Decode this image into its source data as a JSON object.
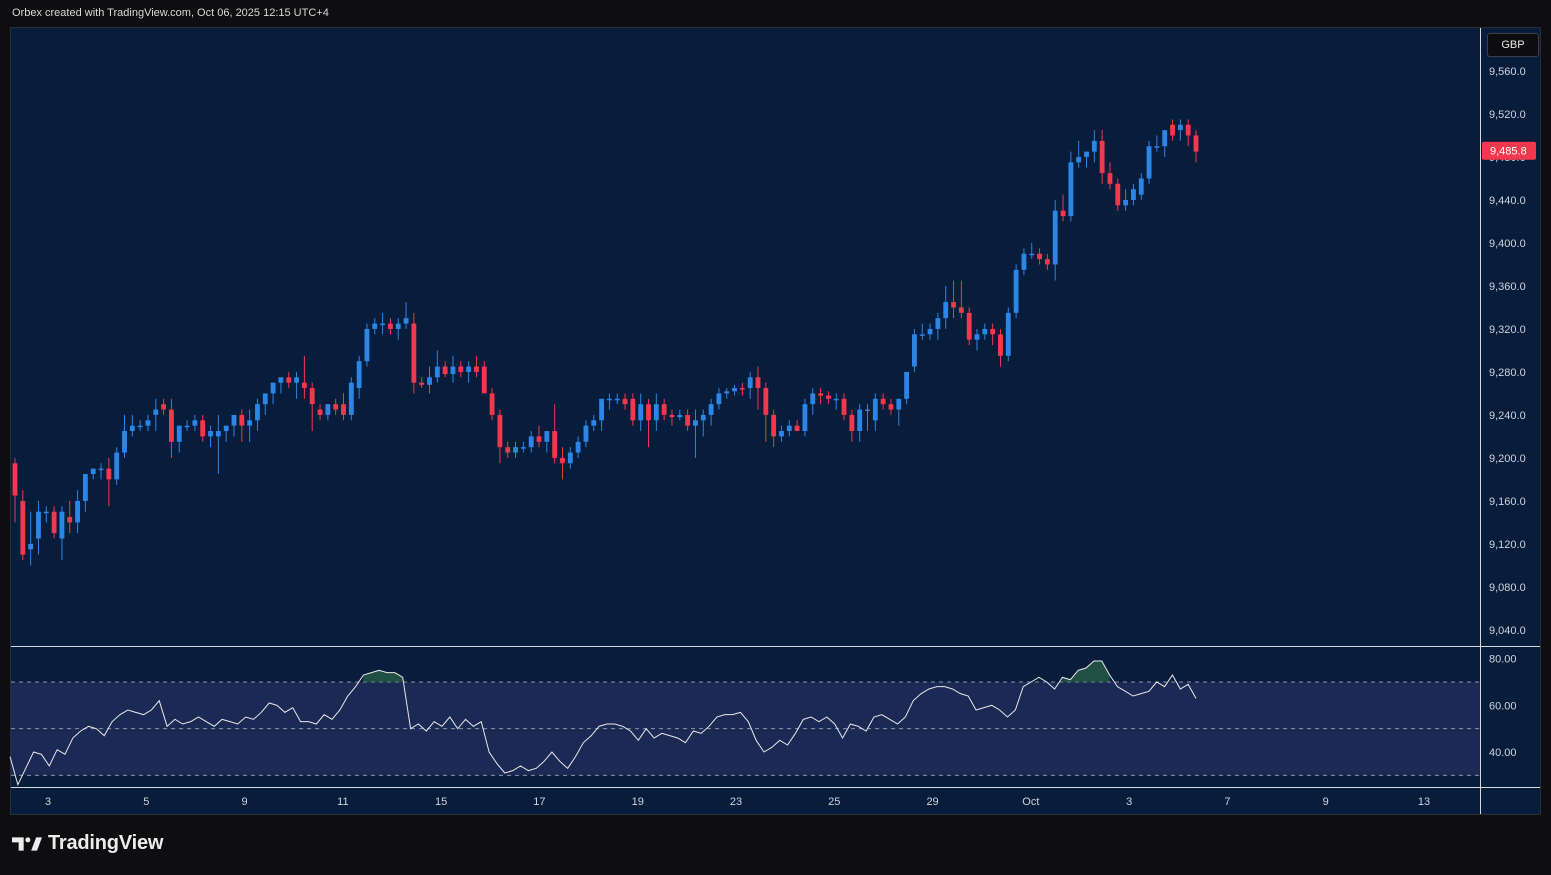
{
  "header": {
    "credit": "Orbex created with TradingView.com, Oct 06, 2025 12:15 UTC+4"
  },
  "currency_button": "GBP",
  "brand": {
    "name": "TradingView"
  },
  "colors": {
    "background": "#081c3b",
    "up": "#2b86e6",
    "down": "#f1384c",
    "rsi_line": "#e8e8e8",
    "rsi_band": "#1b2a55"
  },
  "chart_data": [
    {
      "type": "candlestick",
      "y_axis": {
        "ticks": [
          "9,560.0",
          "9,520.0",
          "9,480.0",
          "9,440.0",
          "9,400.0",
          "9,360.0",
          "9,320.0",
          "9,280.0",
          "9,240.0",
          "9,200.0",
          "9,160.0",
          "9,120.0",
          "9,080.0",
          "9,040.0"
        ],
        "range": [
          9025,
          9600
        ]
      },
      "x_axis": {
        "ticks": [
          "3",
          "5",
          "9",
          "11",
          "15",
          "17",
          "19",
          "23",
          "25",
          "29",
          "Oct",
          "3",
          "7",
          "9",
          "13"
        ]
      },
      "last_price": "9,485.8",
      "ohlc": [
        [
          9195,
          9200,
          9140,
          9165
        ],
        [
          9160,
          9170,
          9105,
          9110
        ],
        [
          9115,
          9150,
          9100,
          9120
        ],
        [
          9125,
          9160,
          9110,
          9150
        ],
        [
          9150,
          9155,
          9140,
          9150
        ],
        [
          9150,
          9155,
          9125,
          9130
        ],
        [
          9125,
          9155,
          9105,
          9150
        ],
        [
          9145,
          9160,
          9130,
          9140
        ],
        [
          9140,
          9170,
          9130,
          9160
        ],
        [
          9160,
          9185,
          9150,
          9185
        ],
        [
          9185,
          9190,
          9180,
          9190
        ],
        [
          9190,
          9195,
          9180,
          9190
        ],
        [
          9190,
          9200,
          9155,
          9180
        ],
        [
          9180,
          9210,
          9175,
          9205
        ],
        [
          9205,
          9240,
          9200,
          9225
        ],
        [
          9225,
          9240,
          9220,
          9230
        ],
        [
          9230,
          9235,
          9225,
          9230
        ],
        [
          9230,
          9240,
          9225,
          9235
        ],
        [
          9240,
          9255,
          9225,
          9245
        ],
        [
          9250,
          9255,
          9240,
          9245
        ],
        [
          9245,
          9255,
          9200,
          9215
        ],
        [
          9215,
          9230,
          9205,
          9230
        ],
        [
          9230,
          9235,
          9225,
          9230
        ],
        [
          9230,
          9240,
          9225,
          9235
        ],
        [
          9235,
          9240,
          9215,
          9220
        ],
        [
          9220,
          9230,
          9210,
          9225
        ],
        [
          9220,
          9240,
          9185,
          9225
        ],
        [
          9225,
          9230,
          9215,
          9230
        ],
        [
          9230,
          9240,
          9220,
          9240
        ],
        [
          9240,
          9245,
          9215,
          9230
        ],
        [
          9230,
          9245,
          9215,
          9235
        ],
        [
          9235,
          9255,
          9225,
          9250
        ],
        [
          9250,
          9260,
          9240,
          9260
        ],
        [
          9260,
          9270,
          9250,
          9270
        ],
        [
          9270,
          9275,
          9260,
          9275
        ],
        [
          9275,
          9280,
          9265,
          9270
        ],
        [
          9270,
          9280,
          9255,
          9275
        ],
        [
          9270,
          9295,
          9255,
          9265
        ],
        [
          9265,
          9270,
          9225,
          9250
        ],
        [
          9245,
          9250,
          9235,
          9240
        ],
        [
          9240,
          9250,
          9235,
          9250
        ],
        [
          9250,
          9255,
          9240,
          9245
        ],
        [
          9250,
          9260,
          9235,
          9240
        ],
        [
          9240,
          9275,
          9235,
          9270
        ],
        [
          9265,
          9295,
          9255,
          9290
        ],
        [
          9290,
          9325,
          9285,
          9320
        ],
        [
          9320,
          9330,
          9315,
          9325
        ],
        [
          9325,
          9335,
          9315,
          9325
        ],
        [
          9325,
          9330,
          9315,
          9320
        ],
        [
          9320,
          9330,
          9310,
          9325
        ],
        [
          9325,
          9345,
          9320,
          9330
        ],
        [
          9325,
          9335,
          9260,
          9270
        ],
        [
          9270,
          9275,
          9265,
          9268
        ],
        [
          9268,
          9285,
          9260,
          9275
        ],
        [
          9275,
          9300,
          9270,
          9285
        ],
        [
          9285,
          9290,
          9275,
          9278
        ],
        [
          9278,
          9295,
          9270,
          9285
        ],
        [
          9285,
          9290,
          9275,
          9280
        ],
        [
          9280,
          9290,
          9270,
          9285
        ],
        [
          9285,
          9295,
          9275,
          9280
        ],
        [
          9285,
          9290,
          9265,
          9260
        ],
        [
          9260,
          9265,
          9235,
          9240
        ],
        [
          9240,
          9245,
          9195,
          9210
        ],
        [
          9210,
          9215,
          9200,
          9205
        ],
        [
          9205,
          9215,
          9200,
          9210
        ],
        [
          9210,
          9215,
          9205,
          9210
        ],
        [
          9210,
          9225,
          9205,
          9220
        ],
        [
          9220,
          9230,
          9210,
          9215
        ],
        [
          9215,
          9225,
          9205,
          9225
        ],
        [
          9225,
          9250,
          9195,
          9200
        ],
        [
          9200,
          9210,
          9180,
          9195
        ],
        [
          9195,
          9210,
          9190,
          9205
        ],
        [
          9205,
          9220,
          9200,
          9215
        ],
        [
          9215,
          9235,
          9210,
          9230
        ],
        [
          9230,
          9240,
          9225,
          9235
        ],
        [
          9235,
          9255,
          9225,
          9255
        ],
        [
          9255,
          9260,
          9245,
          9255
        ],
        [
          9255,
          9260,
          9250,
          9255
        ],
        [
          9255,
          9260,
          9245,
          9250
        ],
        [
          9255,
          9260,
          9230,
          9235
        ],
        [
          9235,
          9260,
          9225,
          9250
        ],
        [
          9250,
          9255,
          9210,
          9235
        ],
        [
          9235,
          9260,
          9225,
          9250
        ],
        [
          9250,
          9255,
          9235,
          9240
        ],
        [
          9240,
          9245,
          9230,
          9238
        ],
        [
          9238,
          9245,
          9235,
          9240
        ],
        [
          9240,
          9245,
          9225,
          9230
        ],
        [
          9230,
          9245,
          9200,
          9235
        ],
        [
          9235,
          9245,
          9220,
          9240
        ],
        [
          9240,
          9255,
          9230,
          9250
        ],
        [
          9250,
          9265,
          9245,
          9260
        ],
        [
          9260,
          9265,
          9255,
          9262
        ],
        [
          9262,
          9268,
          9258,
          9265
        ],
        [
          9265,
          9270,
          9258,
          9264
        ],
        [
          9265,
          9280,
          9255,
          9275
        ],
        [
          9275,
          9285,
          9245,
          9265
        ],
        [
          9265,
          9270,
          9215,
          9240
        ],
        [
          9240,
          9245,
          9210,
          9220
        ],
        [
          9220,
          9230,
          9215,
          9225
        ],
        [
          9225,
          9235,
          9220,
          9230
        ],
        [
          9230,
          9235,
          9225,
          9225
        ],
        [
          9225,
          9255,
          9220,
          9250
        ],
        [
          9250,
          9265,
          9240,
          9260
        ],
        [
          9260,
          9265,
          9250,
          9258
        ],
        [
          9258,
          9262,
          9250,
          9255
        ],
        [
          9255,
          9260,
          9245,
          9255
        ],
        [
          9255,
          9260,
          9235,
          9240
        ],
        [
          9240,
          9245,
          9215,
          9225
        ],
        [
          9225,
          9250,
          9215,
          9245
        ],
        [
          9245,
          9250,
          9225,
          9245
        ],
        [
          9235,
          9260,
          9225,
          9255
        ],
        [
          9255,
          9260,
          9245,
          9250
        ],
        [
          9250,
          9255,
          9240,
          9245
        ],
        [
          9245,
          9255,
          9230,
          9255
        ],
        [
          9255,
          9280,
          9250,
          9280
        ],
        [
          9285,
          9320,
          9280,
          9315
        ],
        [
          9315,
          9325,
          9310,
          9315
        ],
        [
          9315,
          9325,
          9310,
          9320
        ],
        [
          9320,
          9335,
          9310,
          9330
        ],
        [
          9330,
          9360,
          9320,
          9345
        ],
        [
          9345,
          9365,
          9330,
          9340
        ],
        [
          9340,
          9365,
          9330,
          9335
        ],
        [
          9335,
          9340,
          9305,
          9310
        ],
        [
          9310,
          9320,
          9300,
          9315
        ],
        [
          9315,
          9325,
          9310,
          9320
        ],
        [
          9320,
          9325,
          9305,
          9315
        ],
        [
          9315,
          9320,
          9285,
          9295
        ],
        [
          9295,
          9340,
          9290,
          9335
        ],
        [
          9335,
          9380,
          9330,
          9375
        ],
        [
          9375,
          9395,
          9370,
          9390
        ],
        [
          9390,
          9400,
          9385,
          9390
        ],
        [
          9390,
          9395,
          9380,
          9385
        ],
        [
          9385,
          9390,
          9375,
          9380
        ],
        [
          9380,
          9440,
          9365,
          9430
        ],
        [
          9430,
          9445,
          9420,
          9425
        ],
        [
          9425,
          9485,
          9420,
          9475
        ],
        [
          9475,
          9495,
          9470,
          9480
        ],
        [
          9480,
          9485,
          9470,
          9485
        ],
        [
          9485,
          9505,
          9475,
          9495
        ],
        [
          9495,
          9505,
          9455,
          9465
        ],
        [
          9465,
          9475,
          9450,
          9455
        ],
        [
          9455,
          9460,
          9430,
          9435
        ],
        [
          9435,
          9450,
          9430,
          9440
        ],
        [
          9440,
          9455,
          9435,
          9450
        ],
        [
          9445,
          9465,
          9440,
          9460
        ],
        [
          9460,
          9495,
          9455,
          9490
        ],
        [
          9490,
          9500,
          9485,
          9490
        ],
        [
          9490,
          9505,
          9480,
          9505
        ],
        [
          9510,
          9515,
          9495,
          9500
        ],
        [
          9505,
          9515,
          9495,
          9510
        ],
        [
          9510,
          9515,
          9490,
          9500
        ],
        [
          9500,
          9505,
          9475,
          9485
        ]
      ]
    },
    {
      "type": "line",
      "y_axis": {
        "ticks": [
          "80.00",
          "60.00",
          "40.00"
        ],
        "range": [
          25,
          85
        ]
      },
      "levels": [
        70,
        50,
        30
      ],
      "rsi": [
        38,
        26,
        33,
        40,
        39,
        34,
        41,
        39,
        46,
        49,
        51,
        50,
        47,
        53,
        56,
        58,
        57,
        56,
        58,
        62,
        51,
        54,
        52,
        53,
        55,
        53,
        51,
        54,
        53,
        52,
        55,
        54,
        57,
        61,
        60,
        57,
        59,
        53,
        53,
        52,
        56,
        54,
        58,
        64,
        68,
        73,
        74,
        75,
        74,
        74,
        72,
        50,
        52,
        49,
        53,
        51,
        55,
        50,
        54,
        51,
        53,
        40,
        35,
        31,
        32,
        34,
        32,
        33,
        36,
        40,
        36,
        33,
        38,
        44,
        47,
        51,
        52,
        52,
        51,
        49,
        45,
        50,
        46,
        48,
        47,
        46,
        44,
        49,
        48,
        51,
        55,
        56,
        56,
        57,
        53,
        45,
        40,
        42,
        45,
        43,
        48,
        54,
        55,
        53,
        55,
        52,
        46,
        52,
        51,
        49,
        55,
        56,
        54,
        52,
        55,
        62,
        65,
        67,
        68,
        68,
        67,
        65,
        64,
        58,
        59,
        60,
        58,
        55,
        58,
        68,
        70,
        72,
        70,
        67,
        72,
        71,
        75,
        76,
        79,
        79,
        73,
        68,
        66,
        64,
        65,
        66,
        70,
        68,
        73,
        67,
        69,
        63
      ]
    }
  ]
}
